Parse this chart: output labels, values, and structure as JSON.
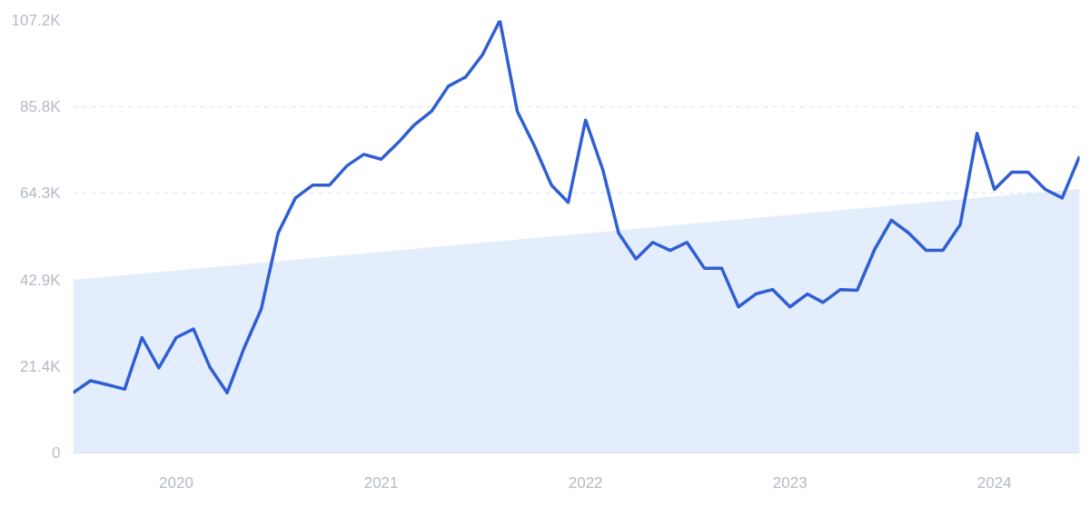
{
  "chart_data": {
    "type": "line",
    "x": [
      "2019-07",
      "2019-08",
      "2019-09",
      "2019-10",
      "2019-11",
      "2019-12",
      "2020-01",
      "2020-02",
      "2020-03",
      "2020-04",
      "2020-05",
      "2020-06",
      "2020-07",
      "2020-08",
      "2020-09",
      "2020-10",
      "2020-11",
      "2020-12",
      "2021-01",
      "2021-02",
      "2021-03",
      "2021-04",
      "2021-05",
      "2021-06",
      "2021-07",
      "2021-08",
      "2021-09",
      "2021-10",
      "2021-11",
      "2021-12",
      "2022-01",
      "2022-02",
      "2022-03",
      "2022-04",
      "2022-05",
      "2022-06",
      "2022-07",
      "2022-08",
      "2022-09",
      "2022-10",
      "2022-11",
      "2022-12",
      "2023-01",
      "2023-02",
      "2023-03",
      "2023-04",
      "2023-05",
      "2023-06",
      "2023-07",
      "2023-08",
      "2023-09",
      "2023-10",
      "2023-11",
      "2023-12",
      "2024-01",
      "2024-02",
      "2024-03",
      "2024-04",
      "2024-05",
      "2024-06"
    ],
    "series": [
      {
        "type": "area",
        "color": "#dce9fb",
        "x": [
          "2019-07",
          "2024-06"
        ],
        "values": [
          42.9,
          65.5
        ]
      },
      {
        "color": "#2f5fd3",
        "values": [
          14.9,
          17.9,
          16.9,
          15.8,
          28.6,
          21.1,
          28.6,
          30.7,
          21.3,
          14.9,
          25.9,
          35.7,
          54.5,
          63.2,
          66.4,
          66.4,
          71.2,
          74.0,
          72.8,
          77.0,
          81.3,
          84.7,
          90.9,
          93.2,
          98.7,
          107.2,
          84.7,
          76.3,
          66.4,
          62.1,
          82.5,
          70.1,
          54.5,
          48.1,
          52.2,
          50.2,
          52.2,
          45.8,
          45.8,
          36.2,
          39.4,
          40.5,
          36.2,
          39.4,
          37.3,
          40.5,
          40.3,
          50.4,
          57.7,
          54.5,
          50.2,
          50.2,
          56.6,
          79.2,
          65.3,
          69.6,
          69.6,
          65.3,
          63.2,
          73.5
        ]
      }
    ],
    "xlim": [
      "2019-07",
      "2024-06"
    ],
    "xticks": [
      {
        "value": "2020-01",
        "label": "2020"
      },
      {
        "value": "2021-01",
        "label": "2021"
      },
      {
        "value": "2022-01",
        "label": "2022"
      },
      {
        "value": "2023-01",
        "label": "2023"
      },
      {
        "value": "2024-01",
        "label": "2024"
      }
    ],
    "ylim": [
      0,
      107.2
    ],
    "yticks": [
      0,
      {
        "value": 21.4,
        "label": "21.4K"
      },
      {
        "value": 42.9,
        "label": "42.9K"
      },
      {
        "value": 64.3,
        "label": "64.3K"
      },
      {
        "value": 85.8,
        "label": "85.8K"
      },
      {
        "value": 107.2,
        "label": "107.2K"
      }
    ],
    "grid": "y",
    "marker": "none",
    "line_style": "solid"
  }
}
